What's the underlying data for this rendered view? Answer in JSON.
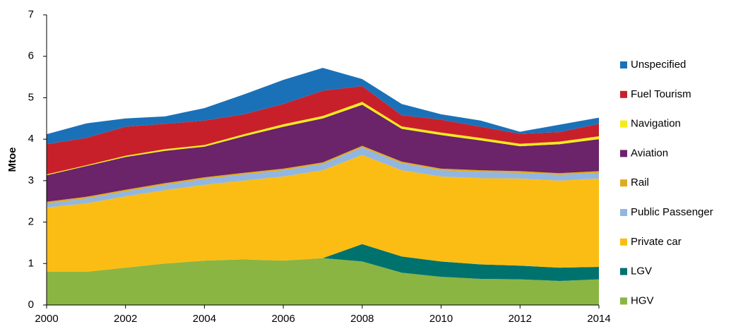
{
  "chart_data": {
    "type": "stacked_area",
    "y_label": "Mtoe",
    "x": [
      2000,
      2001,
      2002,
      2003,
      2004,
      2005,
      2006,
      2007,
      2008,
      2009,
      2010,
      2011,
      2012,
      2013,
      2014
    ],
    "xlim": [
      2000,
      2014
    ],
    "xticks": [
      2000,
      2002,
      2004,
      2006,
      2008,
      2010,
      2012,
      2014
    ],
    "ylim": [
      0,
      7
    ],
    "yticks": [
      0,
      1,
      2,
      3,
      4,
      5,
      6,
      7
    ],
    "legend": "right",
    "series": [
      {
        "name": "HGV",
        "color": "#8ab543",
        "values": [
          0.8,
          0.8,
          0.9,
          1.0,
          1.07,
          1.1,
          1.07,
          1.13,
          1.05,
          0.78,
          0.68,
          0.63,
          0.62,
          0.58,
          0.62
        ]
      },
      {
        "name": "LGV",
        "color": "#00726e",
        "values": [
          0,
          0,
          0,
          0,
          0,
          0,
          0,
          0,
          0.42,
          0.39,
          0.37,
          0.35,
          0.33,
          0.32,
          0.3
        ]
      },
      {
        "name": "Private car",
        "color": "#fbbd14",
        "values": [
          1.55,
          1.65,
          1.72,
          1.77,
          1.83,
          1.9,
          2.03,
          2.12,
          2.15,
          2.08,
          2.05,
          2.08,
          2.1,
          2.1,
          2.13
        ]
      },
      {
        "name": "Public Passenger",
        "color": "#92b6e2",
        "values": [
          0.1,
          0.12,
          0.12,
          0.13,
          0.14,
          0.15,
          0.15,
          0.15,
          0.18,
          0.17,
          0.15,
          0.15,
          0.14,
          0.14,
          0.14
        ]
      },
      {
        "name": "Rail",
        "color": "#deaa22",
        "values": [
          0.04,
          0.04,
          0.04,
          0.04,
          0.04,
          0.04,
          0.04,
          0.04,
          0.04,
          0.04,
          0.04,
          0.04,
          0.04,
          0.04,
          0.04
        ]
      },
      {
        "name": "Aviation",
        "color": "#6b2369",
        "values": [
          0.64,
          0.74,
          0.79,
          0.78,
          0.74,
          0.88,
          1.01,
          1.06,
          0.99,
          0.79,
          0.81,
          0.72,
          0.6,
          0.7,
          0.77
        ]
      },
      {
        "name": "Navigation",
        "color": "#f7ea1c",
        "values": [
          0.02,
          0.02,
          0.03,
          0.04,
          0.04,
          0.05,
          0.06,
          0.06,
          0.07,
          0.06,
          0.06,
          0.06,
          0.06,
          0.06,
          0.07
        ]
      },
      {
        "name": "Fuel Tourism",
        "color": "#c8202a",
        "values": [
          0.73,
          0.66,
          0.7,
          0.61,
          0.59,
          0.48,
          0.49,
          0.61,
          0.38,
          0.27,
          0.31,
          0.27,
          0.24,
          0.23,
          0.3
        ]
      },
      {
        "name": "Unspecified",
        "color": "#1b71b8",
        "values": [
          0.24,
          0.35,
          0.2,
          0.18,
          0.3,
          0.48,
          0.58,
          0.55,
          0.17,
          0.27,
          0.13,
          0.15,
          0.05,
          0.18,
          0.15
        ]
      }
    ]
  }
}
